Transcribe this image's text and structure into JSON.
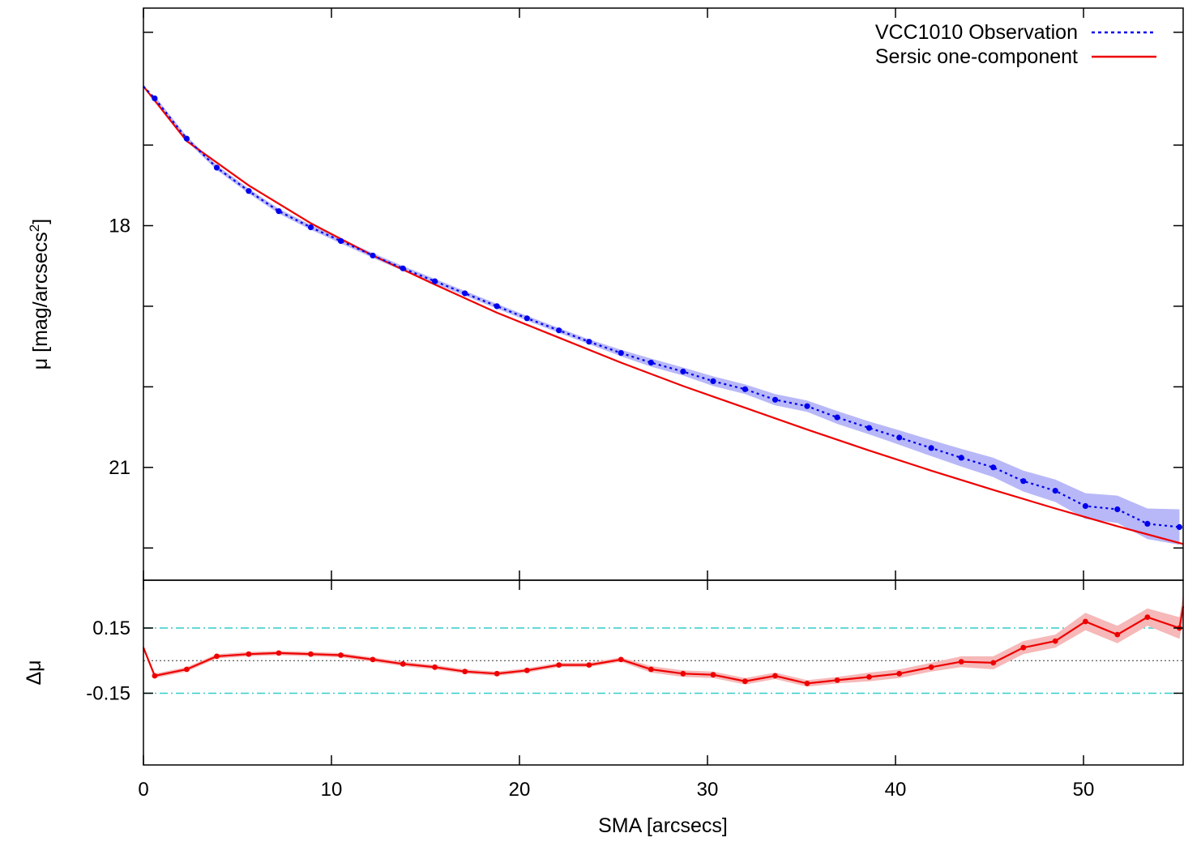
{
  "chart_data": [
    {
      "type": "line",
      "panel": "main",
      "ylabel": "μ [mag/arcsecs",
      "ylabel_sup": "2",
      "ylabel_close": "]",
      "xlim": [
        0,
        55.3
      ],
      "ylim": [
        22.4,
        15.3
      ],
      "y_inverted": true,
      "yticks_major": [
        18,
        21
      ],
      "yticks_minor": [
        15.6,
        17.0,
        19.0,
        20.0,
        22.0
      ],
      "legend_position": "top-right",
      "series": [
        {
          "name": "VCC1010 Observation",
          "style": "dotted",
          "color": "#0000ee",
          "band_color": "#b8b8f8",
          "x": [
            0.6,
            2.3,
            3.9,
            5.6,
            7.2,
            8.9,
            10.5,
            12.2,
            13.8,
            15.5,
            17.1,
            18.8,
            20.4,
            22.1,
            23.7,
            25.4,
            27.0,
            28.7,
            30.3,
            32.0,
            33.6,
            35.3,
            36.9,
            38.6,
            40.2,
            41.9,
            43.5,
            45.2,
            46.8,
            48.5,
            50.1,
            51.8,
            53.4,
            55.1
          ],
          "y": [
            16.42,
            16.92,
            17.28,
            17.57,
            17.82,
            18.02,
            18.19,
            18.37,
            18.53,
            18.69,
            18.84,
            19.0,
            19.15,
            19.3,
            19.44,
            19.58,
            19.7,
            19.81,
            19.93,
            20.03,
            20.16,
            20.24,
            20.38,
            20.51,
            20.63,
            20.76,
            20.88,
            21.0,
            21.17,
            21.29,
            21.48,
            21.52,
            21.7,
            21.74
          ],
          "band_halfwidth": [
            0.03,
            0.03,
            0.03,
            0.03,
            0.03,
            0.03,
            0.03,
            0.03,
            0.03,
            0.03,
            0.03,
            0.03,
            0.03,
            0.03,
            0.03,
            0.04,
            0.05,
            0.05,
            0.06,
            0.06,
            0.07,
            0.07,
            0.08,
            0.08,
            0.09,
            0.1,
            0.11,
            0.12,
            0.13,
            0.14,
            0.16,
            0.17,
            0.19,
            0.22
          ]
        },
        {
          "name": "Sersic one-component",
          "style": "solid",
          "color": "#ee0000",
          "x": [
            0.0,
            2.3,
            5.6,
            8.9,
            12.2,
            15.5,
            18.8,
            22.1,
            25.4,
            28.7,
            32.0,
            35.3,
            38.6,
            41.9,
            45.2,
            48.5,
            51.8,
            55.3
          ],
          "y": [
            16.27,
            16.95,
            17.5,
            17.97,
            18.37,
            18.73,
            19.08,
            19.39,
            19.7,
            19.99,
            20.26,
            20.53,
            20.79,
            21.04,
            21.28,
            21.51,
            21.73,
            21.95
          ]
        }
      ]
    },
    {
      "type": "line",
      "panel": "residual",
      "ylabel": "Δμ",
      "xlabel": "SMA [arcsecs]",
      "xlim": [
        0,
        55.3
      ],
      "ylim": [
        -0.48,
        0.37
      ],
      "yticks": [
        0.15,
        -0.15
      ],
      "xticks": [
        0,
        10,
        20,
        30,
        40,
        50
      ],
      "reference_lines": [
        0.15,
        -0.15
      ],
      "zero_line": 0,
      "series": [
        {
          "name": "residual",
          "color": "#ee0000",
          "band_color": "#f6b8b8",
          "x": [
            0.0,
            0.6,
            2.3,
            3.9,
            5.6,
            7.2,
            8.9,
            10.5,
            12.2,
            13.8,
            15.5,
            17.1,
            18.8,
            20.4,
            22.1,
            23.7,
            25.4,
            27.0,
            28.7,
            30.3,
            32.0,
            33.6,
            35.3,
            36.9,
            38.6,
            40.2,
            41.9,
            43.5,
            45.2,
            46.8,
            48.5,
            50.1,
            51.8,
            53.4,
            55.1,
            55.3
          ],
          "y": [
            0.06,
            -0.07,
            -0.04,
            0.02,
            0.03,
            0.035,
            0.03,
            0.025,
            0.005,
            -0.015,
            -0.03,
            -0.05,
            -0.06,
            -0.045,
            -0.02,
            -0.02,
            0.005,
            -0.04,
            -0.06,
            -0.065,
            -0.095,
            -0.07,
            -0.105,
            -0.09,
            -0.075,
            -0.06,
            -0.03,
            -0.005,
            -0.01,
            0.06,
            0.09,
            0.18,
            0.12,
            0.2,
            0.15,
            0.25
          ],
          "band_halfwidth": [
            0.01,
            0.01,
            0.01,
            0.01,
            0.01,
            0.01,
            0.01,
            0.01,
            0.01,
            0.01,
            0.01,
            0.01,
            0.01,
            0.01,
            0.01,
            0.01,
            0.01,
            0.015,
            0.015,
            0.015,
            0.015,
            0.015,
            0.015,
            0.015,
            0.02,
            0.02,
            0.02,
            0.025,
            0.03,
            0.03,
            0.03,
            0.04,
            0.04,
            0.04,
            0.05,
            0.06
          ]
        }
      ]
    }
  ]
}
